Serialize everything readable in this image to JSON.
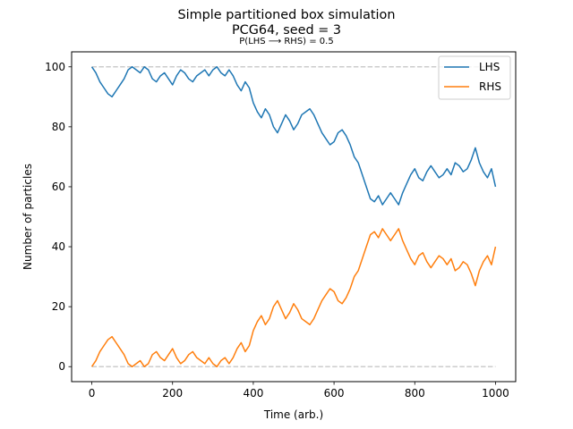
{
  "chart_data": {
    "type": "line",
    "title": "Simple partitioned box simulation",
    "title_line2": "PCG64, seed = 3",
    "subtitle": "P(LHS  ⟶  RHS) = 0.5",
    "xlabel": "Time (arb.)",
    "ylabel": "Number of particles",
    "xlim": [
      -50,
      1050
    ],
    "ylim": [
      -5,
      105
    ],
    "xticks": [
      0,
      200,
      400,
      600,
      800,
      1000
    ],
    "yticks": [
      0,
      20,
      40,
      60,
      80,
      100
    ],
    "grid": false,
    "legend_position": "top-right",
    "reference_lines": [
      {
        "y": 0,
        "x": [
          0,
          1000
        ],
        "style": "dashed",
        "color": "#cccccc"
      },
      {
        "y": 100,
        "x": [
          0,
          1000
        ],
        "style": "dashed",
        "color": "#cccccc"
      }
    ],
    "x": [
      0,
      10,
      20,
      30,
      40,
      50,
      60,
      70,
      80,
      90,
      100,
      110,
      120,
      130,
      140,
      150,
      160,
      170,
      180,
      190,
      200,
      210,
      220,
      230,
      240,
      250,
      260,
      270,
      280,
      290,
      300,
      310,
      320,
      330,
      340,
      350,
      360,
      370,
      380,
      390,
      400,
      410,
      420,
      430,
      440,
      450,
      460,
      470,
      480,
      490,
      500,
      510,
      520,
      530,
      540,
      550,
      560,
      570,
      580,
      590,
      600,
      610,
      620,
      630,
      640,
      650,
      660,
      670,
      680,
      690,
      700,
      710,
      720,
      730,
      740,
      750,
      760,
      770,
      780,
      790,
      800,
      810,
      820,
      830,
      840,
      850,
      860,
      870,
      880,
      890,
      900,
      910,
      920,
      930,
      940,
      950,
      960,
      970,
      980,
      990,
      1000
    ],
    "series": [
      {
        "name": "LHS",
        "color": "#1f77b4",
        "values": [
          100,
          98,
          95,
          93,
          91,
          90,
          92,
          94,
          96,
          99,
          100,
          99,
          98,
          100,
          99,
          96,
          95,
          97,
          98,
          96,
          94,
          97,
          99,
          98,
          96,
          95,
          97,
          98,
          99,
          97,
          99,
          100,
          98,
          97,
          99,
          97,
          94,
          92,
          95,
          93,
          88,
          85,
          83,
          86,
          84,
          80,
          78,
          81,
          84,
          82,
          79,
          81,
          84,
          85,
          86,
          84,
          81,
          78,
          76,
          74,
          75,
          78,
          79,
          77,
          74,
          70,
          68,
          64,
          60,
          56,
          55,
          57,
          54,
          56,
          58,
          56,
          54,
          58,
          61,
          64,
          66,
          63,
          62,
          65,
          67,
          65,
          63,
          64,
          66,
          64,
          68,
          67,
          65,
          66,
          69,
          73,
          68,
          65,
          63,
          66,
          60
        ]
      },
      {
        "name": "RHS",
        "color": "#ff7f0e",
        "values": [
          0,
          2,
          5,
          7,
          9,
          10,
          8,
          6,
          4,
          1,
          0,
          1,
          2,
          0,
          1,
          4,
          5,
          3,
          2,
          4,
          6,
          3,
          1,
          2,
          4,
          5,
          3,
          2,
          1,
          3,
          1,
          0,
          2,
          3,
          1,
          3,
          6,
          8,
          5,
          7,
          12,
          15,
          17,
          14,
          16,
          20,
          22,
          19,
          16,
          18,
          21,
          19,
          16,
          15,
          14,
          16,
          19,
          22,
          24,
          26,
          25,
          22,
          21,
          23,
          26,
          30,
          32,
          36,
          40,
          44,
          45,
          43,
          46,
          44,
          42,
          44,
          46,
          42,
          39,
          36,
          34,
          37,
          38,
          35,
          33,
          35,
          37,
          36,
          34,
          36,
          32,
          33,
          35,
          34,
          31,
          27,
          32,
          35,
          37,
          34,
          40
        ]
      }
    ]
  }
}
